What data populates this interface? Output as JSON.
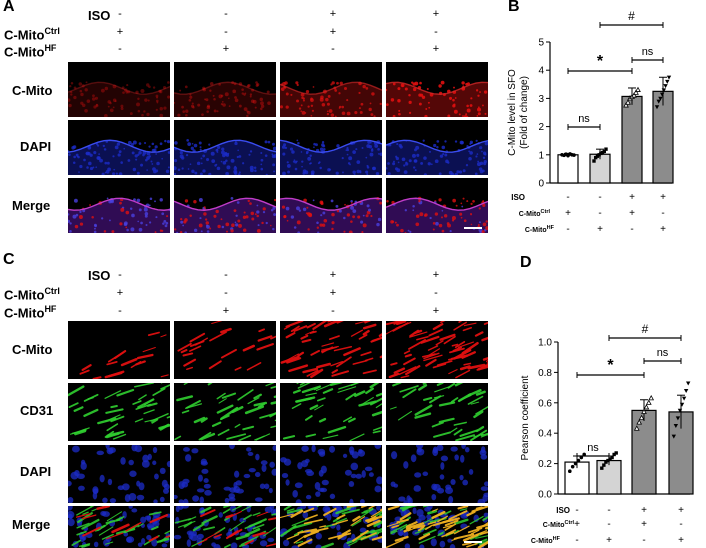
{
  "panel_letters": [
    "A",
    "B",
    "C",
    "D"
  ],
  "condition_rows": {
    "iso": "ISO",
    "ctrl": "C-Mito",
    "ctrl_sup": "Ctrl",
    "hf": "C-Mito",
    "hf_sup": "HF"
  },
  "conditions": [
    {
      "iso": "-",
      "ctrl": "+",
      "hf": "-"
    },
    {
      "iso": "-",
      "ctrl": "-",
      "hf": "+"
    },
    {
      "iso": "+",
      "ctrl": "+",
      "hf": "-"
    },
    {
      "iso": "+",
      "ctrl": "-",
      "hf": "+"
    }
  ],
  "panelA_rows": [
    "C-Mito",
    "DAPI",
    "Merge"
  ],
  "panelC_rows": [
    "C-Mito",
    "CD31",
    "DAPI",
    "Merge"
  ],
  "colors": {
    "bar_ctrl": "#ffffff",
    "bar_hf": "#d4d4d4",
    "bar_iso_ctrl": "#8c8c8c",
    "bar_iso_hf": "#8c8c8c",
    "red_channel": "#e01010",
    "green_channel": "#30d030",
    "blue_channel": "#1c2cc8"
  },
  "chart_data": [
    {
      "type": "bar",
      "panel": "B",
      "ylabel": "C-Mito level in SFO\n(Fold of change)",
      "ylim": [
        0,
        5
      ],
      "yticks": [
        0,
        1,
        2,
        3,
        4,
        5
      ],
      "values": [
        1.0,
        1.02,
        3.07,
        3.25
      ],
      "errors": [
        0.05,
        0.18,
        0.3,
        0.5
      ],
      "points": [
        [
          1.0,
          0.98,
          1.02,
          0.97,
          1.03,
          1.0,
          0.99
        ],
        [
          0.78,
          0.9,
          0.95,
          1.0,
          1.05,
          1.08,
          1.12,
          1.2
        ],
        [
          2.75,
          2.85,
          3.0,
          3.05,
          3.1,
          3.2,
          3.3
        ],
        [
          2.7,
          2.9,
          3.0,
          3.15,
          3.3,
          3.45,
          3.6,
          3.75
        ]
      ],
      "row_labels": [
        "ISO",
        "C-Mito",
        "C-Mito"
      ],
      "row_sups": [
        "",
        "Ctrl",
        "HF"
      ],
      "signs": [
        [
          "-",
          "-",
          "+",
          "+"
        ],
        [
          "+",
          "-",
          "+",
          "-"
        ],
        [
          "-",
          "+",
          "-",
          "+"
        ]
      ],
      "annotations": {
        "ns1": "ns",
        "ns2": "ns",
        "star": "*",
        "hash": "#"
      }
    },
    {
      "type": "bar",
      "panel": "D",
      "ylabel": "Pearson coefficient",
      "ylim": [
        0,
        1.0
      ],
      "yticks": [
        "0.0",
        "0.2",
        "0.4",
        "0.6",
        "0.8",
        "1.0"
      ],
      "values": [
        0.21,
        0.22,
        0.55,
        0.54
      ],
      "errors": [
        0.04,
        0.03,
        0.07,
        0.11
      ],
      "points": [
        [
          0.15,
          0.18,
          0.2,
          0.22,
          0.24,
          0.26
        ],
        [
          0.17,
          0.19,
          0.21,
          0.22,
          0.23,
          0.24,
          0.26,
          0.27
        ],
        [
          0.43,
          0.47,
          0.5,
          0.54,
          0.57,
          0.6,
          0.63
        ],
        [
          0.38,
          0.45,
          0.5,
          0.55,
          0.59,
          0.63,
          0.68,
          0.73
        ]
      ],
      "row_labels": [
        "ISO",
        "C-Mito",
        "C-Mito"
      ],
      "row_sups": [
        "",
        "Ctrl",
        "HF"
      ],
      "signs": [
        [
          "-",
          "-",
          "+",
          "+"
        ],
        [
          "+",
          "-",
          "+",
          "-"
        ],
        [
          "-",
          "+",
          "-",
          "+"
        ]
      ],
      "annotations": {
        "ns1": "ns",
        "ns2": "ns",
        "star": "*",
        "hash": "#"
      }
    }
  ]
}
